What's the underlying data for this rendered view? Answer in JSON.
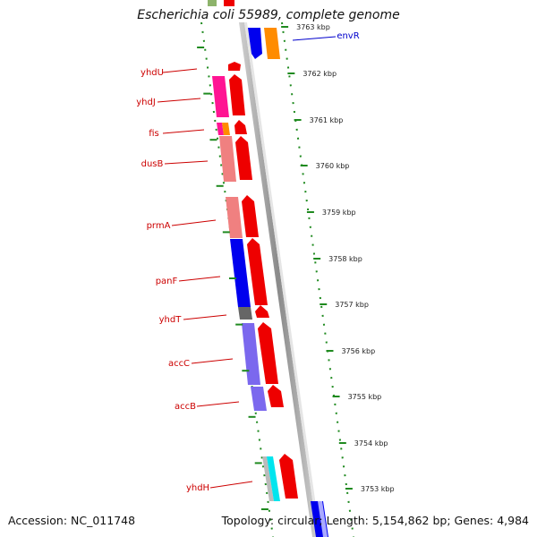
{
  "title": "Escherichia coli 55989, complete genome",
  "footer": {
    "accession": "Accession: NC_011748",
    "topology": "Topology: circular; Length: 5,154,862 bp; Genes: 4,984"
  },
  "colors": {
    "backbone": "#8c8c8c",
    "tick": "#1f8a1f",
    "gene_label": "#cc0000",
    "scale_label": "#222222",
    "forward_arrow": "#ee0000"
  },
  "scale_labels": [
    "3763 kbp",
    "3762 kbp",
    "3761 kbp",
    "3760 kbp",
    "3759 kbp",
    "3758 kbp",
    "3757 kbp",
    "3756 kbp",
    "3755 kbp",
    "3754 kbp",
    "3753 kbp"
  ],
  "left_genes": [
    {
      "label": "yhdU",
      "color": "#ee0000"
    },
    {
      "label": "yhdJ",
      "color": "#ff1493"
    },
    {
      "label": "fis",
      "color": "#ff1493"
    },
    {
      "label": "dusB",
      "color": "#f08080"
    },
    {
      "label": "prmA",
      "color": "#f08080"
    },
    {
      "label": "panF",
      "color": "#0000ee"
    },
    {
      "label": "yhdT",
      "color": "#666666"
    },
    {
      "label": "accC",
      "color": "#7b68ee"
    },
    {
      "label": "accB",
      "color": "#7b68ee"
    },
    {
      "label": "yhdH",
      "color": "#00e5ee"
    }
  ],
  "right_genes": [
    {
      "label": "envR",
      "color": "#ff8c00",
      "label_color": "#0000cc"
    }
  ]
}
